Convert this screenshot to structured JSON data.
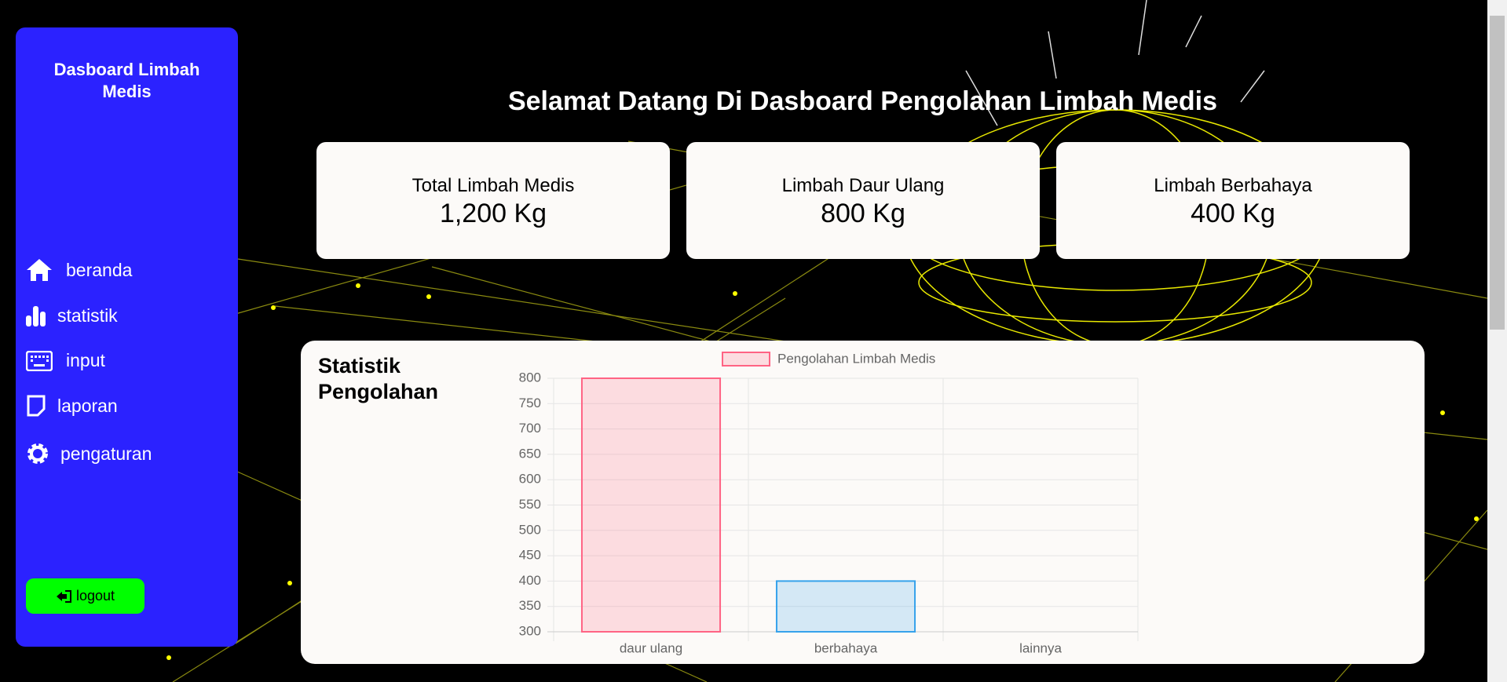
{
  "sidebar": {
    "title": "Dasboard Limbah Medis",
    "menu": [
      "beranda",
      "statistik",
      "input",
      "laporan",
      "pengaturan"
    ],
    "logout": "logout"
  },
  "header": {
    "title": "Selamat Datang Di Dasboard Pengolahan Limbah Medis"
  },
  "cards": [
    {
      "label": "Total Limbah Medis",
      "value": "1,200 Kg"
    },
    {
      "label": "Limbah Daur Ulang",
      "value": "800 Kg"
    },
    {
      "label": "Limbah Berbahaya",
      "value": "400 Kg"
    }
  ],
  "panel": {
    "title": "Statistik Pengolahan"
  },
  "chart_data": {
    "type": "bar",
    "categories": [
      "daur ulang",
      "berbahaya",
      "lainnya"
    ],
    "series": [
      {
        "name": "Pengolahan Limbah Medis",
        "color": "#ff6384",
        "values": [
          800,
          400,
          null
        ]
      }
    ],
    "colors": [
      "#ff6384",
      "#36a2eb",
      "#ffce56"
    ],
    "ylim": [
      300,
      800
    ],
    "yticks": [
      300,
      350,
      400,
      450,
      500,
      550,
      600,
      650,
      700,
      750,
      800
    ],
    "grid": true,
    "legend": "top"
  }
}
